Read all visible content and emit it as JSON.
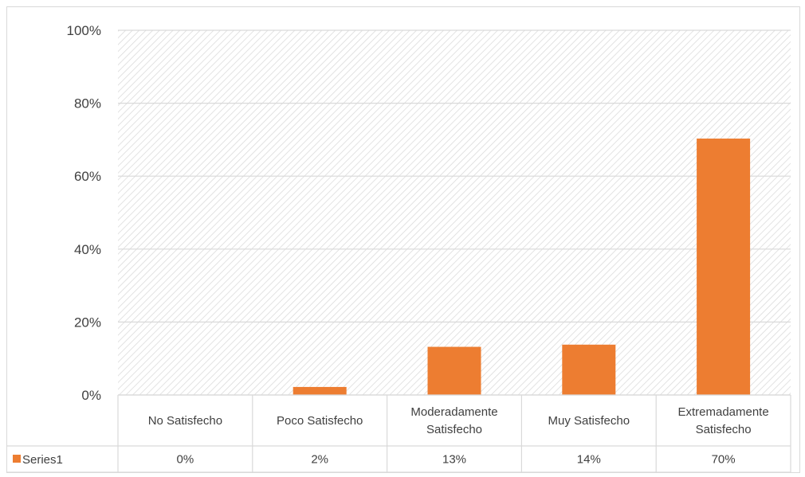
{
  "chart_data": {
    "type": "bar",
    "categories": [
      "No Satisfecho",
      "Poco Satisfecho",
      "Moderadamente Satisfecho",
      "Muy Satisfecho",
      "Extremadamente Satisfecho"
    ],
    "category_lines": [
      [
        "No Satisfecho"
      ],
      [
        "Poco Satisfecho"
      ],
      [
        "Moderadamente",
        "Satisfecho"
      ],
      [
        "Muy Satisfecho"
      ],
      [
        "Extremadamente",
        "Satisfecho"
      ]
    ],
    "series": [
      {
        "name": "Series1",
        "values": [
          0.0,
          2.2,
          13.2,
          13.8,
          70.3
        ],
        "labels": [
          "0%",
          "2%",
          "13%",
          "14%",
          "70%"
        ],
        "color": "#ed7d31"
      }
    ],
    "yticks": [
      "0%",
      "20%",
      "40%",
      "60%",
      "80%",
      "100%"
    ],
    "ylim": [
      0,
      100
    ],
    "grid": true,
    "plot_pattern": "diagonal-hatch",
    "data_table": true,
    "title": "",
    "xlabel": "",
    "ylabel": ""
  }
}
